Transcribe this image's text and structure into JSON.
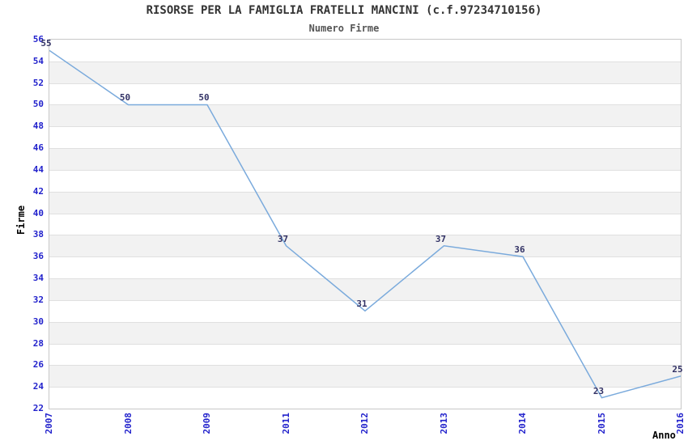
{
  "chart_data": {
    "type": "line",
    "title": "RISORSE PER LA FAMIGLIA FRATELLI MANCINI (c.f.97234710156)",
    "subtitle": "Numero Firme",
    "xlabel": "Anno",
    "ylabel": "Firme",
    "categories": [
      "2007",
      "2008",
      "2009",
      "2011",
      "2012",
      "2013",
      "2014",
      "2015",
      "2016"
    ],
    "values": [
      55,
      50,
      50,
      37,
      31,
      37,
      36,
      23,
      25
    ],
    "ylim": [
      22,
      56
    ],
    "ytick_step": 2,
    "grid": "horizontal-alternating-bands",
    "legend": "none",
    "colors": {
      "line": "#7aaadc",
      "tick_label": "#2222cc",
      "data_label": "#333366",
      "band": "#f2f2f2",
      "gridline": "#e0e0e0",
      "plot_border": "#c8c8c8",
      "title": "#333333",
      "subtitle": "#555555",
      "axis_label": "#000000"
    }
  }
}
